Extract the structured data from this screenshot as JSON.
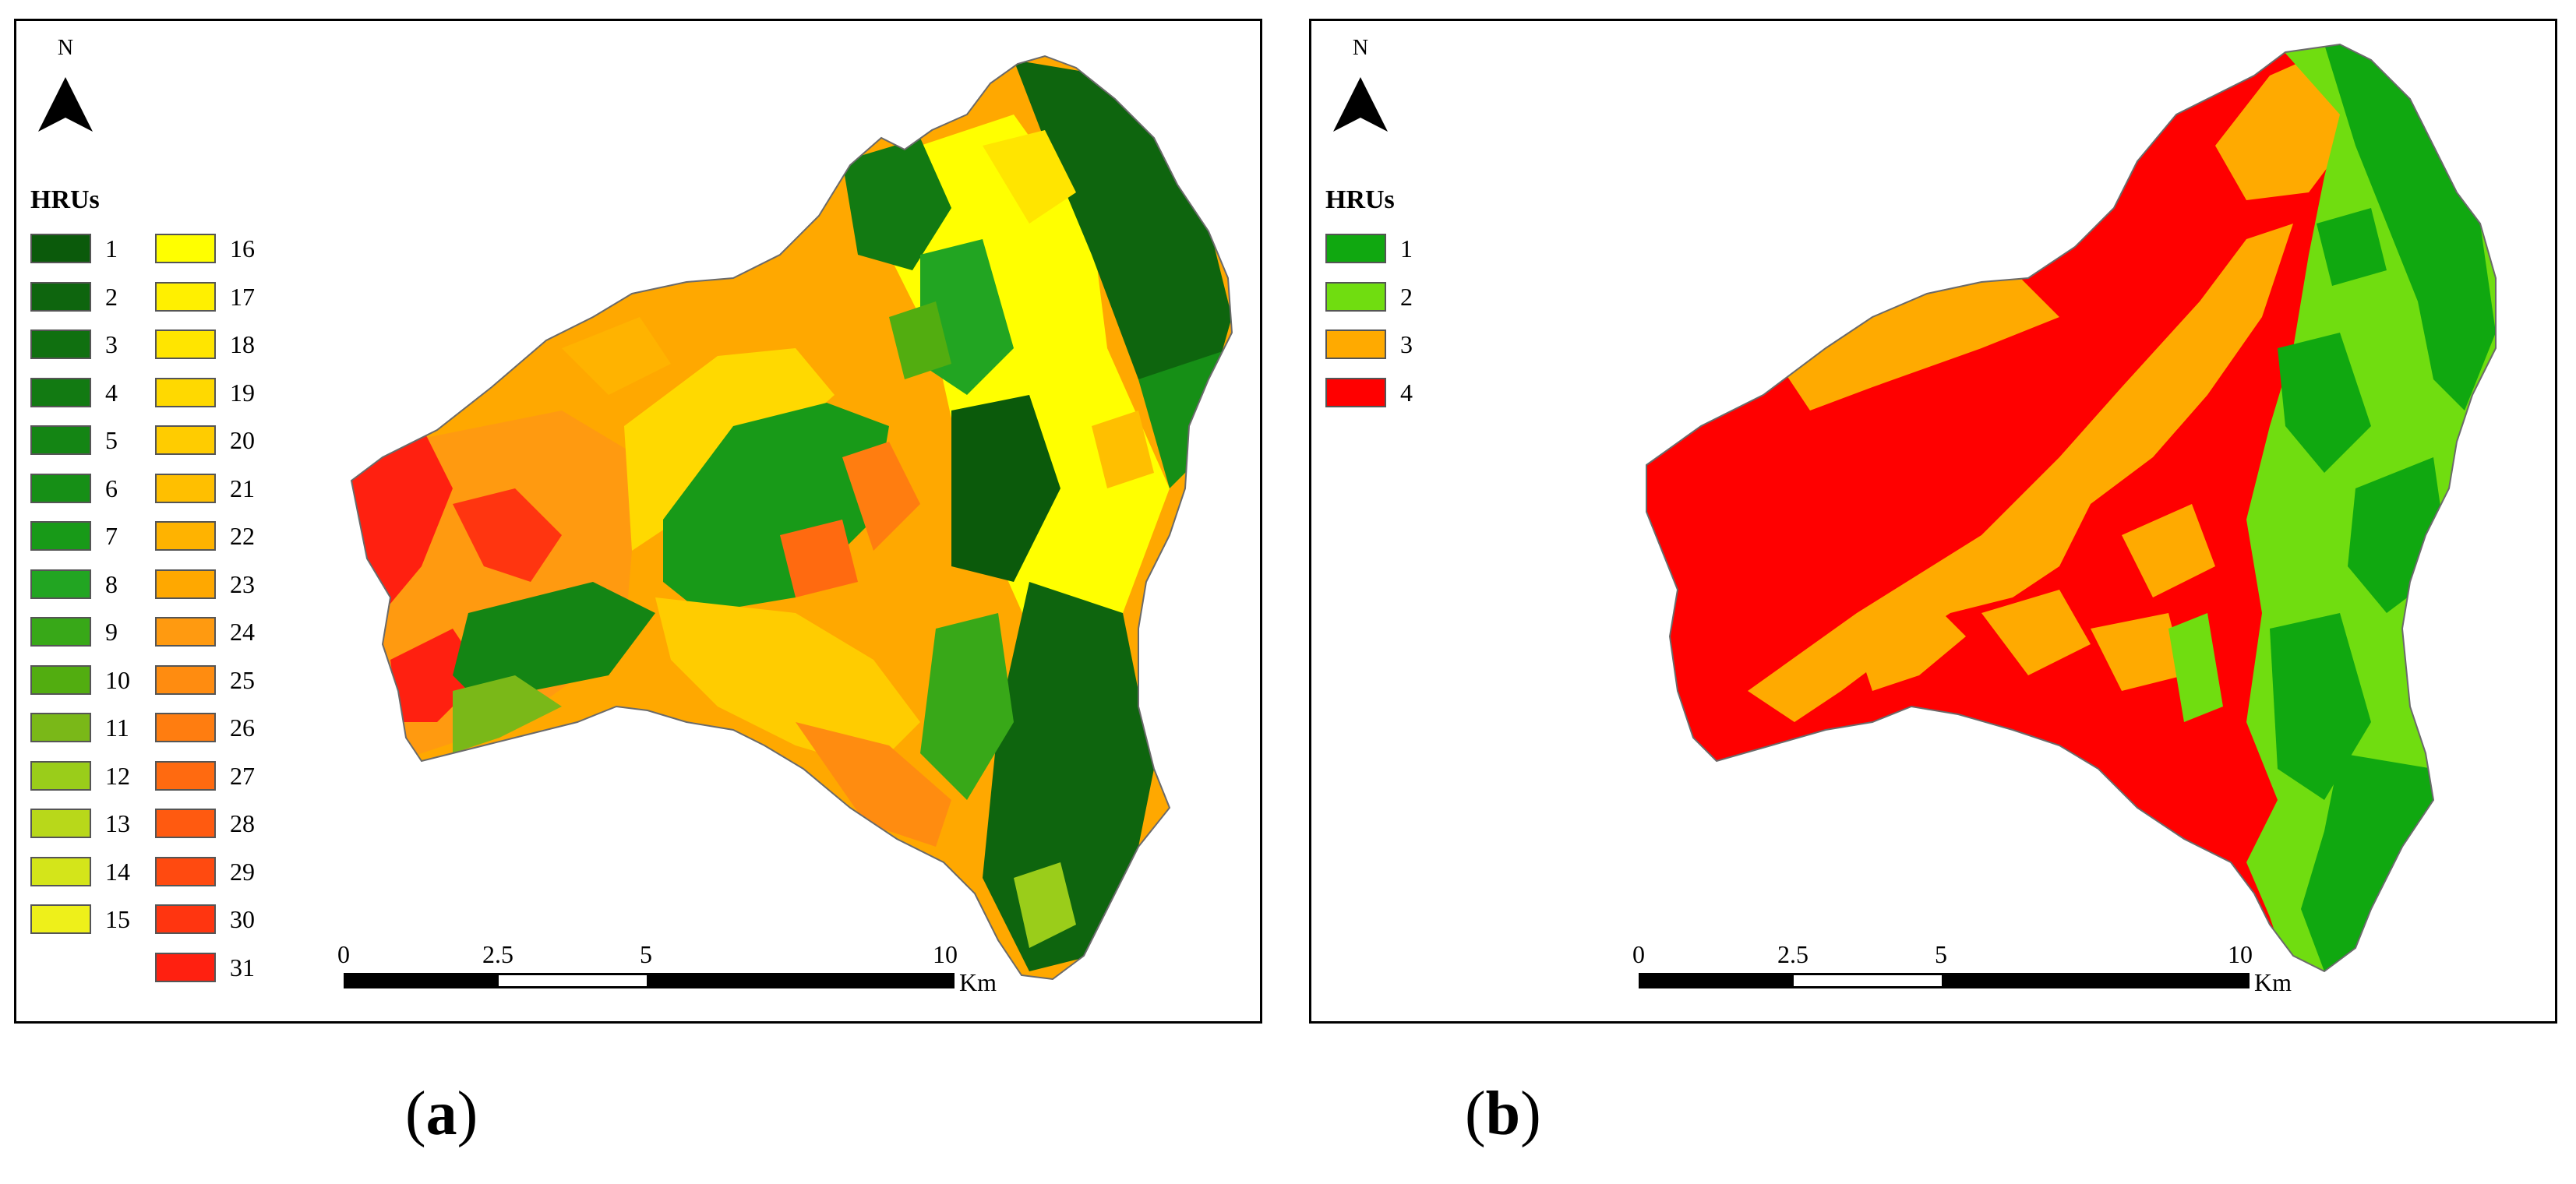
{
  "panel_a": {
    "north_label": "N",
    "legend_title": "HRUs",
    "legend_items": [
      {
        "label": "1",
        "color": "#0b5a0b"
      },
      {
        "label": "2",
        "color": "#0e650e"
      },
      {
        "label": "3",
        "color": "#107010"
      },
      {
        "label": "4",
        "color": "#127a12"
      },
      {
        "label": "5",
        "color": "#148514"
      },
      {
        "label": "6",
        "color": "#168f16"
      },
      {
        "label": "7",
        "color": "#189a18"
      },
      {
        "label": "8",
        "color": "#22a522"
      },
      {
        "label": "9",
        "color": "#38a818"
      },
      {
        "label": "10",
        "color": "#52ad10"
      },
      {
        "label": "11",
        "color": "#7ab818"
      },
      {
        "label": "12",
        "color": "#9acd1a"
      },
      {
        "label": "13",
        "color": "#b8d81a"
      },
      {
        "label": "14",
        "color": "#d4e51a"
      },
      {
        "label": "15",
        "color": "#eef01a"
      },
      {
        "label": "16",
        "color": "#ffff00"
      },
      {
        "label": "17",
        "color": "#fff000"
      },
      {
        "label": "18",
        "color": "#ffe500"
      },
      {
        "label": "19",
        "color": "#ffd900"
      },
      {
        "label": "20",
        "color": "#ffcc00"
      },
      {
        "label": "21",
        "color": "#ffbf00"
      },
      {
        "label": "22",
        "color": "#ffb300"
      },
      {
        "label": "23",
        "color": "#ffa800"
      },
      {
        "label": "24",
        "color": "#ff9a10"
      },
      {
        "label": "25",
        "color": "#ff8c10"
      },
      {
        "label": "26",
        "color": "#ff7d10"
      },
      {
        "label": "27",
        "color": "#ff6a10"
      },
      {
        "label": "28",
        "color": "#ff5a10"
      },
      {
        "label": "29",
        "color": "#ff4a10"
      },
      {
        "label": "30",
        "color": "#ff3510"
      },
      {
        "label": "31",
        "color": "#ff2010"
      }
    ],
    "scale": {
      "ticks": [
        "0",
        "2.5",
        "5",
        "10"
      ],
      "unit": "Km"
    },
    "caption": "a"
  },
  "panel_b": {
    "north_label": "N",
    "legend_title": "HRUs",
    "legend_items": [
      {
        "label": "1",
        "color": "#10a810"
      },
      {
        "label": "2",
        "color": "#70dd10"
      },
      {
        "label": "3",
        "color": "#ffaa00"
      },
      {
        "label": "4",
        "color": "#ff0000"
      }
    ],
    "scale": {
      "ticks": [
        "0",
        "2.5",
        "5",
        "10"
      ],
      "unit": "Km"
    },
    "caption": "b"
  }
}
